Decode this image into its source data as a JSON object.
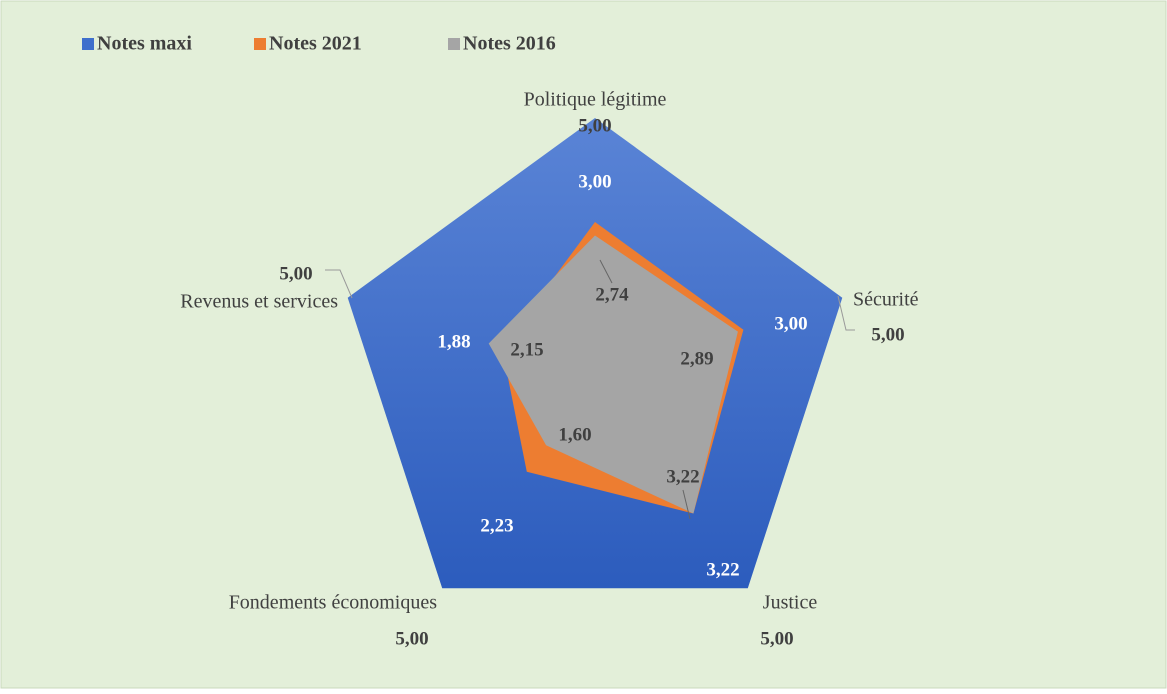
{
  "chart_data": {
    "type": "radar",
    "categories": [
      "Politique légitime",
      "Sécurité",
      "Justice",
      "Fondements économiques",
      "Revenus et services"
    ],
    "rlim": [
      0,
      5
    ],
    "legend": "top-left",
    "series": [
      {
        "name": "Notes maxi",
        "color": "#3f6fcc",
        "values": [
          5,
          5,
          5,
          5,
          5
        ],
        "value_labels": [
          "5,00",
          "5,00",
          "5,00",
          "5,00",
          "5,00"
        ]
      },
      {
        "name": "Notes 2021",
        "color": "#ed7d31",
        "values": [
          3.0,
          3.0,
          3.22,
          2.23,
          1.88
        ],
        "value_labels": [
          "3,00",
          "3,00",
          "3,22",
          "2,23",
          "1,88"
        ]
      },
      {
        "name": "Notes 2016",
        "color": "#a5a5a5",
        "values": [
          2.74,
          2.89,
          3.22,
          1.6,
          2.15
        ],
        "value_labels": [
          "2,74",
          "2,89",
          "3,22",
          "1,60",
          "2,15"
        ]
      }
    ]
  }
}
